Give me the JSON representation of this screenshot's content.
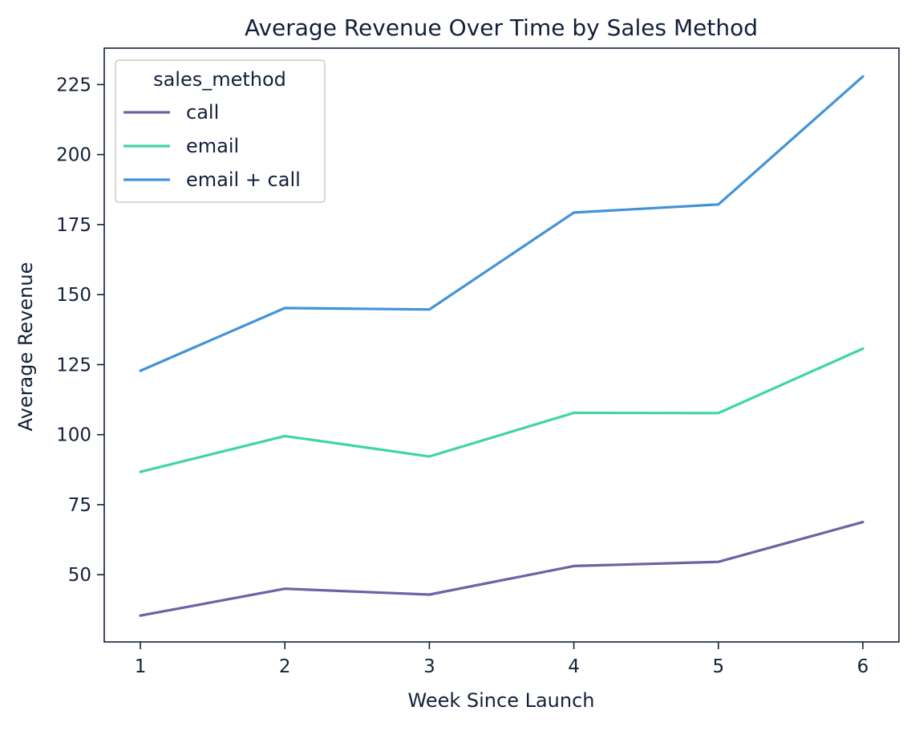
{
  "chart_data": {
    "type": "line",
    "title": "Average Revenue Over Time by Sales Method",
    "xlabel": "Week Since Launch",
    "ylabel": "Average Revenue",
    "x": [
      1,
      2,
      3,
      4,
      5,
      6
    ],
    "xticks": [
      "1",
      "2",
      "3",
      "4",
      "5",
      "6"
    ],
    "yticks": [
      "50",
      "75",
      "100",
      "125",
      "150",
      "175",
      "200",
      "225"
    ],
    "ytick_values": [
      50,
      75,
      100,
      125,
      150,
      175,
      200,
      225
    ],
    "xlim": [
      0.75,
      6.25
    ],
    "ylim": [
      26,
      238
    ],
    "grid": false,
    "legend": {
      "title": "sales_method",
      "placement": "top-left"
    },
    "series": [
      {
        "name": "call",
        "color": "#6a64a4",
        "values": [
          35.4,
          45.0,
          42.9,
          53.1,
          54.6,
          68.8
        ]
      },
      {
        "name": "email",
        "color": "#3fd6a0",
        "values": [
          86.7,
          99.5,
          92.2,
          107.8,
          107.7,
          130.7
        ]
      },
      {
        "name": "email + call",
        "color": "#4193d8",
        "values": [
          122.8,
          145.2,
          144.7,
          179.3,
          182.2,
          227.9
        ]
      }
    ]
  }
}
